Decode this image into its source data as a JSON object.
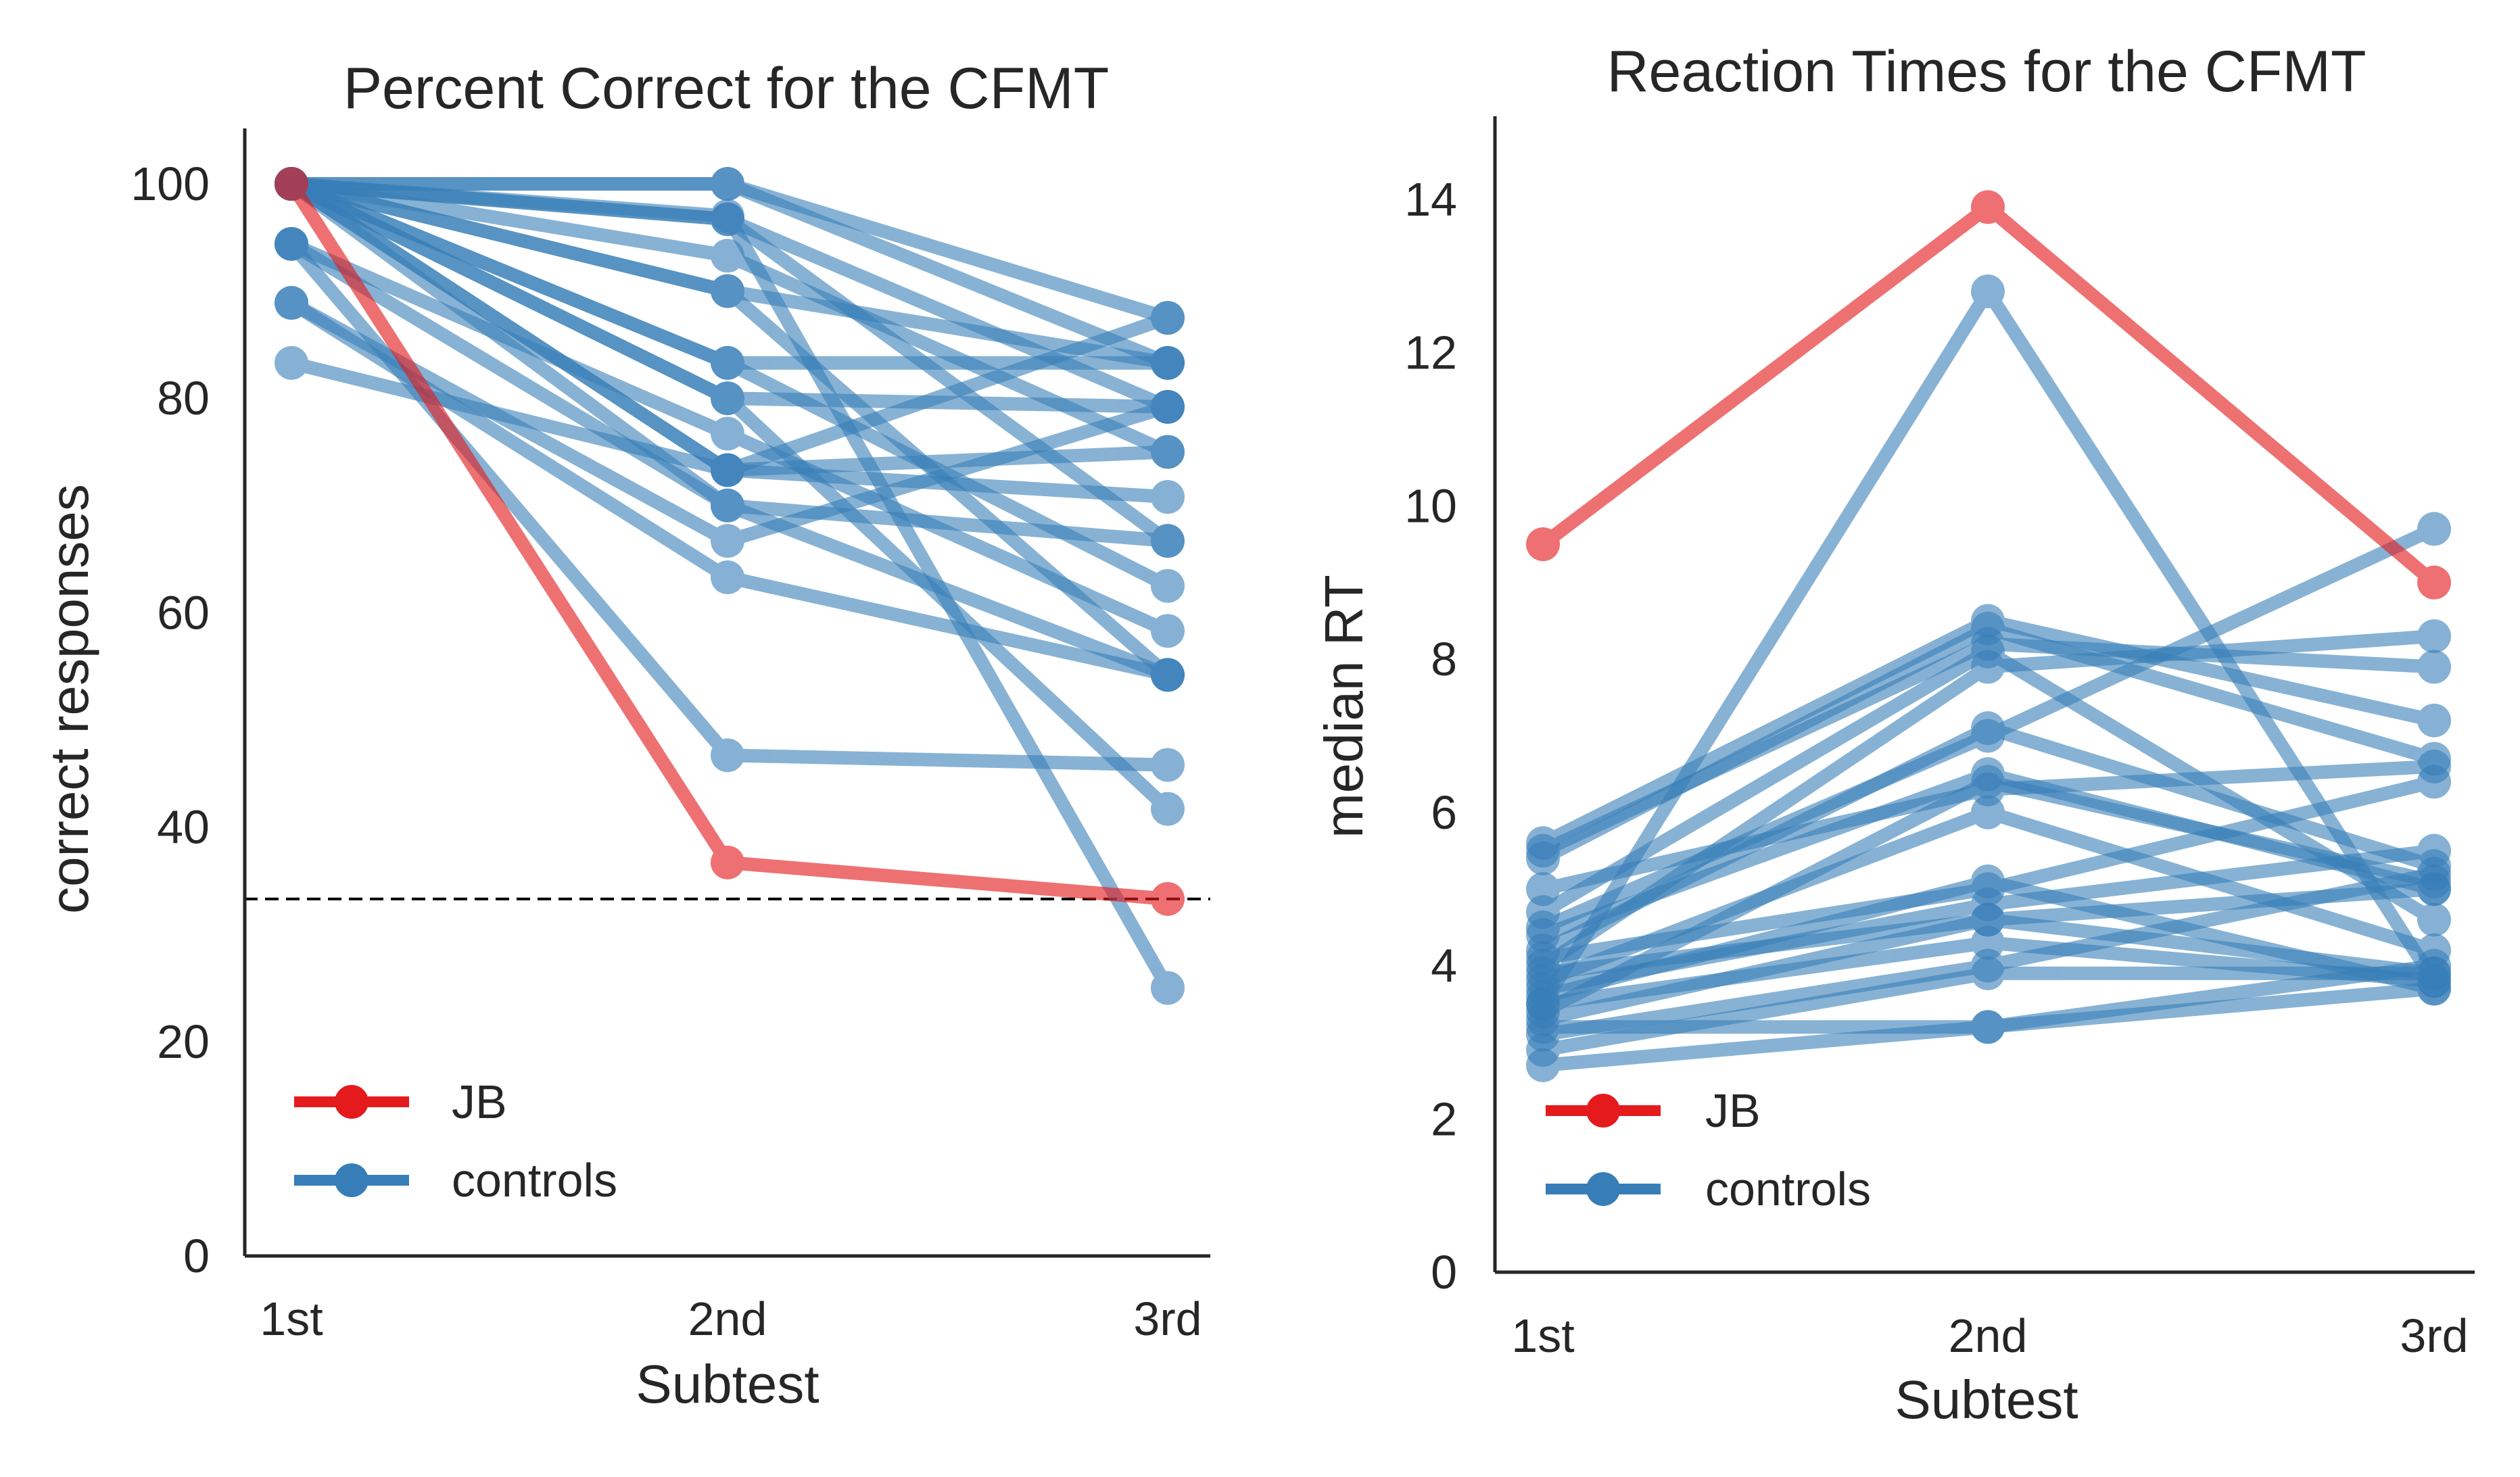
{
  "chart_data": [
    {
      "type": "line",
      "title": "Percent Correct for the CFMT",
      "xlabel": "Subtest",
      "ylabel": "correct responses",
      "categories": [
        "1st",
        "2nd",
        "3rd"
      ],
      "ylim": [
        0,
        105
      ],
      "yticks": [
        "0",
        "20",
        "40",
        "60",
        "80",
        "100"
      ],
      "ytick_values": [
        0,
        20,
        40,
        60,
        80,
        100
      ],
      "reference_line": {
        "y": 33.3,
        "style": "dashed",
        "color": "#000000"
      },
      "grid": false,
      "legend": {
        "position": "lower-left",
        "entries": [
          {
            "label": "JB",
            "color": "#e41a1c"
          },
          {
            "label": "controls",
            "color": "#377eb8"
          }
        ]
      },
      "series": [
        {
          "name": "JB",
          "color": "#e41a1c",
          "values": [
            100,
            36.7,
            33.3
          ]
        },
        {
          "group": "controls",
          "color": "#377eb8",
          "values": [
            100,
            100,
            87.5
          ]
        },
        {
          "group": "controls",
          "color": "#377eb8",
          "values": [
            100,
            100,
            83.3
          ]
        },
        {
          "group": "controls",
          "color": "#377eb8",
          "values": [
            100,
            96.7,
            79.2
          ]
        },
        {
          "group": "controls",
          "color": "#377eb8",
          "values": [
            100,
            96.7,
            66.7
          ]
        },
        {
          "group": "controls",
          "color": "#377eb8",
          "values": [
            100,
            93.3,
            75
          ]
        },
        {
          "group": "controls",
          "color": "#377eb8",
          "values": [
            100,
            90,
            83.3
          ]
        },
        {
          "group": "controls",
          "color": "#377eb8",
          "values": [
            100,
            90,
            54.2
          ]
        },
        {
          "group": "controls",
          "color": "#377eb8",
          "values": [
            100,
            83.3,
            83.3
          ]
        },
        {
          "group": "controls",
          "color": "#377eb8",
          "values": [
            100,
            83.3,
            62.5
          ]
        },
        {
          "group": "controls",
          "color": "#377eb8",
          "values": [
            100,
            80,
            79.2
          ]
        },
        {
          "group": "controls",
          "color": "#377eb8",
          "values": [
            100,
            80,
            41.7
          ]
        },
        {
          "group": "controls",
          "color": "#377eb8",
          "values": [
            100,
            73.3,
            87.5
          ]
        },
        {
          "group": "controls",
          "color": "#377eb8",
          "values": [
            100,
            73.3,
            70.8
          ]
        },
        {
          "group": "controls",
          "color": "#377eb8",
          "values": [
            100,
            70,
            66.7
          ]
        },
        {
          "group": "controls",
          "color": "#377eb8",
          "values": [
            100,
            97,
            25
          ]
        },
        {
          "group": "controls",
          "color": "#377eb8",
          "values": [
            94.4,
            76.7,
            58.3
          ]
        },
        {
          "group": "controls",
          "color": "#377eb8",
          "values": [
            94.4,
            70,
            54.2
          ]
        },
        {
          "group": "controls",
          "color": "#377eb8",
          "values": [
            94.4,
            46.7,
            45.8
          ]
        },
        {
          "group": "controls",
          "color": "#377eb8",
          "values": [
            88.9,
            66.7,
            79.2
          ]
        },
        {
          "group": "controls",
          "color": "#377eb8",
          "values": [
            88.9,
            63.3,
            54.2
          ]
        },
        {
          "group": "controls",
          "color": "#377eb8",
          "values": [
            83.3,
            73.3,
            75
          ]
        }
      ]
    },
    {
      "type": "line",
      "title": "Reaction Times for the CFMT",
      "xlabel": "Subtest",
      "ylabel": "median RT",
      "categories": [
        "1st",
        "2nd",
        "3rd"
      ],
      "ylim": [
        0,
        15
      ],
      "yticks": [
        "0",
        "2",
        "4",
        "6",
        "8",
        "10",
        "12",
        "14"
      ],
      "ytick_values": [
        0,
        2,
        4,
        6,
        8,
        10,
        12,
        14
      ],
      "grid": false,
      "legend": {
        "position": "lower-left",
        "entries": [
          {
            "label": "JB",
            "color": "#e41a1c"
          },
          {
            "label": "controls",
            "color": "#377eb8"
          }
        ]
      },
      "series": [
        {
          "name": "JB",
          "color": "#e41a1c",
          "values": [
            9.5,
            13.9,
            9.0
          ]
        },
        {
          "group": "controls",
          "color": "#377eb8",
          "values": [
            3.5,
            12.8,
            3.8
          ]
        },
        {
          "group": "controls",
          "color": "#377eb8",
          "values": [
            5.6,
            8.5,
            7.2
          ]
        },
        {
          "group": "controls",
          "color": "#377eb8",
          "values": [
            5.5,
            8.2,
            7.9
          ]
        },
        {
          "group": "controls",
          "color": "#377eb8",
          "values": [
            5.4,
            8.4,
            6.7
          ]
        },
        {
          "group": "controls",
          "color": "#377eb8",
          "values": [
            5.0,
            6.3,
            6.6
          ]
        },
        {
          "group": "controls",
          "color": "#377eb8",
          "values": [
            4.7,
            8.1,
            4.6
          ]
        },
        {
          "group": "controls",
          "color": "#377eb8",
          "values": [
            4.5,
            7.0,
            9.7
          ]
        },
        {
          "group": "controls",
          "color": "#377eb8",
          "values": [
            4.4,
            6.5,
            5.0
          ]
        },
        {
          "group": "controls",
          "color": "#377eb8",
          "values": [
            4.2,
            7.1,
            5.3
          ]
        },
        {
          "group": "controls",
          "color": "#377eb8",
          "values": [
            4.1,
            5.0,
            6.4
          ]
        },
        {
          "group": "controls",
          "color": "#377eb8",
          "values": [
            4.0,
            7.9,
            8.3
          ]
        },
        {
          "group": "controls",
          "color": "#377eb8",
          "values": [
            3.9,
            4.6,
            3.9
          ]
        },
        {
          "group": "controls",
          "color": "#377eb8",
          "values": [
            3.8,
            6.0,
            4.2
          ]
        },
        {
          "group": "controls",
          "color": "#377eb8",
          "values": [
            3.7,
            4.8,
            5.5
          ]
        },
        {
          "group": "controls",
          "color": "#377eb8",
          "values": [
            3.6,
            5.1,
            3.7
          ]
        },
        {
          "group": "controls",
          "color": "#377eb8",
          "values": [
            3.5,
            4.3,
            3.8
          ]
        },
        {
          "group": "controls",
          "color": "#377eb8",
          "values": [
            3.4,
            6.4,
            5.1
          ]
        },
        {
          "group": "controls",
          "color": "#377eb8",
          "values": [
            3.3,
            4.6,
            5.0
          ]
        },
        {
          "group": "controls",
          "color": "#377eb8",
          "values": [
            3.2,
            3.2,
            3.7
          ]
        },
        {
          "group": "controls",
          "color": "#377eb8",
          "values": [
            3.1,
            4.0,
            5.2
          ]
        },
        {
          "group": "controls",
          "color": "#377eb8",
          "values": [
            2.9,
            3.9,
            3.9
          ]
        },
        {
          "group": "controls",
          "color": "#377eb8",
          "values": [
            2.7,
            3.2,
            4.0
          ]
        }
      ]
    }
  ]
}
